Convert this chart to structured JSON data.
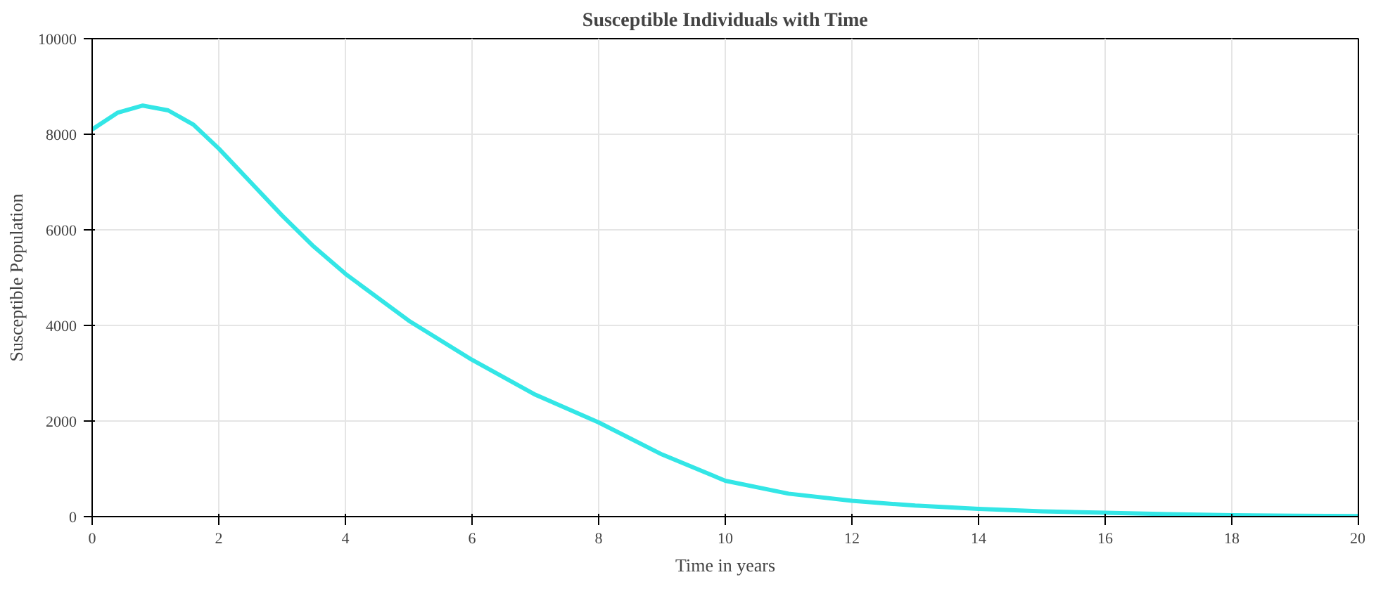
{
  "chart_data": {
    "type": "line",
    "title": "Susceptible Individuals with Time",
    "xlabel": "Time in years",
    "ylabel": "Susceptible Population",
    "x": [
      0,
      0.4,
      0.8,
      1.2,
      1.6,
      2,
      2.5,
      3,
      3.5,
      4,
      5,
      6,
      7,
      8,
      9,
      10,
      11,
      12,
      13,
      14,
      15,
      16,
      17,
      18,
      19,
      20
    ],
    "series": [
      {
        "color": "#33e6e6",
        "values": [
          8100,
          8450,
          8600,
          8500,
          8200,
          7700,
          7000,
          6300,
          5650,
          5080,
          4100,
          3280,
          2550,
          1970,
          1300,
          750,
          480,
          330,
          230,
          160,
          110,
          80,
          50,
          30,
          20,
          10
        ]
      }
    ],
    "xlim": [
      0,
      20
    ],
    "ylim": [
      0,
      10000
    ],
    "xticks": [
      0,
      2,
      4,
      6,
      8,
      10,
      12,
      14,
      16,
      18,
      20
    ],
    "yticks": [
      0,
      2000,
      4000,
      6000,
      8000,
      10000
    ],
    "grid": true
  }
}
